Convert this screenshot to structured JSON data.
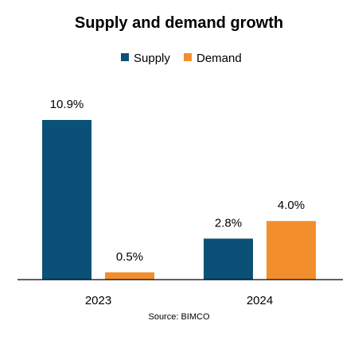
{
  "chart_data": {
    "type": "bar",
    "title": "Supply and demand growth",
    "categories": [
      "2023",
      "2024"
    ],
    "series": [
      {
        "name": "Supply",
        "values": [
          10.9,
          2.8
        ],
        "labels": [
          "10.9%",
          "2.8%"
        ],
        "color": "#0B5177"
      },
      {
        "name": "Demand",
        "values": [
          0.5,
          4.0
        ],
        "labels": [
          "0.5%",
          "4.0%"
        ],
        "color": "#F28E2B"
      }
    ],
    "ylim": [
      0,
      12
    ],
    "grid": false,
    "legend": "top-center",
    "source": "Source: BIMCO"
  }
}
